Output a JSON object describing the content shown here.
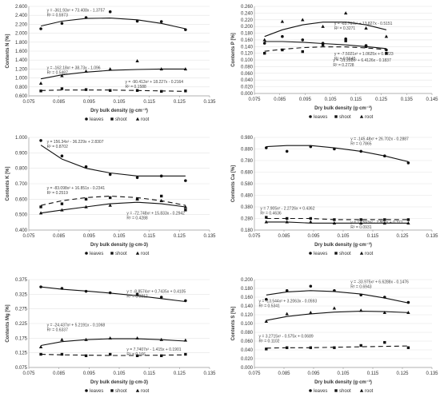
{
  "series_meta": [
    {
      "key": "leaves",
      "name": "leaves",
      "marker": "circle",
      "dash": ""
    },
    {
      "key": "shoot",
      "name": "shoot",
      "marker": "square",
      "dash": "6,4"
    },
    {
      "key": "root",
      "name": "root",
      "marker": "triangle",
      "dash": ""
    }
  ],
  "chart_data": [
    {
      "type": "scatter",
      "ylabel": "Contents N [%]",
      "xlabel": "Dry bulk density (g·cm⁻³)",
      "xlim": [
        0.075,
        0.135
      ],
      "ylim": [
        0.6,
        2.6
      ],
      "xticks": [
        "0.075",
        "0.085",
        "0.095",
        "0.105",
        "0.115",
        "0.125",
        "0.135"
      ],
      "yticks": [
        "0.600",
        "0.800",
        "1.000",
        "1.200",
        "1.400",
        "1.600",
        "1.800",
        "2.000",
        "2.200",
        "2.400",
        "2.600"
      ],
      "x": [
        0.079,
        0.086,
        0.094,
        0.102,
        0.111,
        0.119,
        0.127
      ],
      "series": [
        {
          "key": "leaves",
          "values": [
            2.1,
            2.22,
            2.35,
            2.48,
            2.27,
            2.26,
            2.08
          ],
          "trend": [
            2.16,
            2.27,
            2.33,
            2.34,
            2.3,
            2.22,
            2.1
          ],
          "equation": "y = -361.93x² + 73.408x - 1.3757",
          "r2": "R² = 0.5973"
        },
        {
          "key": "shoot",
          "values": [
            0.71,
            0.76,
            0.74,
            0.72,
            0.72,
            0.7,
            0.71
          ],
          "trend": [
            0.72,
            0.73,
            0.73,
            0.73,
            0.72,
            0.71,
            0.7
          ],
          "equation": "y = -90.413x² + 18.227x - 0.2164",
          "r2": "R² = 0.1588"
        },
        {
          "key": "root",
          "values": [
            0.88,
            1.05,
            1.15,
            1.2,
            1.38,
            1.2,
            1.2
          ],
          "trend": [
            0.98,
            1.07,
            1.13,
            1.17,
            1.19,
            1.2,
            1.2
          ],
          "equation": "y = -162.18x² + 38.73x - 1.096",
          "r2": "R² = 0.5487"
        }
      ],
      "eq_pos": [
        [
          0.081,
          2.48
        ],
        [
          0.107,
          0.89
        ],
        [
          0.081,
          1.2
        ]
      ]
    },
    {
      "type": "scatter",
      "ylabel": "Contents P [%]",
      "xlabel": "Dry bulk density (g·cm⁻³)",
      "xlim": [
        0.075,
        0.145
      ],
      "ylim": [
        0.0,
        0.26
      ],
      "xticks": [
        "0.075",
        "0.085",
        "0.095",
        "0.105",
        "0.115",
        "0.125",
        "0.135",
        "0.145"
      ],
      "yticks": [
        "0.000",
        "0.020",
        "0.040",
        "0.060",
        "0.080",
        "0.100",
        "0.120",
        "0.140",
        "0.160",
        "0.180",
        "0.200",
        "0.220",
        "0.240",
        "0.260"
      ],
      "x": [
        0.079,
        0.086,
        0.094,
        0.102,
        0.111,
        0.119,
        0.127
      ],
      "series": [
        {
          "key": "leaves",
          "values": [
            0.15,
            0.17,
            0.16,
            0.15,
            0.163,
            0.143,
            0.13
          ],
          "trend": [
            0.155,
            0.155,
            0.153,
            0.149,
            0.145,
            0.14,
            0.134
          ],
          "equation": "y = -7.5021x² + 1.0625x + 0.1223",
          "r2": "R² = 0.5648"
        },
        {
          "key": "shoot",
          "values": [
            0.12,
            0.13,
            0.125,
            0.145,
            0.157,
            0.14,
            0.12
          ],
          "trend": [
            0.126,
            0.132,
            0.137,
            0.139,
            0.139,
            0.136,
            0.131
          ],
          "equation": "y = -31.288x² + 6.4126x - 0.1837",
          "r2": "R² = 0.2728"
        },
        {
          "key": "root",
          "values": [
            0.16,
            0.215,
            0.22,
            0.2,
            0.24,
            0.195,
            0.17
          ],
          "trend": [
            0.17,
            0.19,
            0.205,
            0.213,
            0.213,
            0.205,
            0.19
          ],
          "equation": "y = -65.767x² + 13.827x - 0.5151",
          "r2": "R² = 0.3271"
        }
      ],
      "eq_pos": [
        [
          0.1065,
          0.114
        ],
        [
          0.106,
          0.095
        ],
        [
          0.1065,
          0.205
        ]
      ]
    },
    {
      "type": "scatter",
      "ylabel": "Contents K [%]",
      "xlabel": "Dry bulk density (g·cm-3)",
      "xlim": [
        0.075,
        0.135
      ],
      "ylim": [
        0.4,
        1.0
      ],
      "xticks": [
        "0.075",
        "0.085",
        "0.095",
        "0.105",
        "0.115",
        "0.125",
        "0.135"
      ],
      "yticks": [
        "0.400",
        "0.500",
        "0.600",
        "0.700",
        "0.800",
        "0.900",
        "1.000"
      ],
      "x": [
        0.079,
        0.086,
        0.094,
        0.102,
        0.111,
        0.119,
        0.127
      ],
      "series": [
        {
          "key": "leaves",
          "values": [
            0.98,
            0.88,
            0.81,
            0.76,
            0.74,
            0.75,
            0.72
          ],
          "trend": [
            0.95,
            0.86,
            0.8,
            0.77,
            0.75,
            0.75,
            0.75
          ],
          "equation": "y = 156.34x² - 36.229x + 2.8307",
          "r2": "R² = 0.8702"
        },
        {
          "key": "shoot",
          "values": [
            0.55,
            0.57,
            0.6,
            0.61,
            0.6,
            0.62,
            0.53
          ],
          "trend": [
            0.56,
            0.59,
            0.61,
            0.62,
            0.61,
            0.59,
            0.56
          ],
          "equation": "y = -83.098x² + 16.851x - 0.2341",
          "r2": "R² = 0.2519"
        },
        {
          "key": "root",
          "values": [
            0.51,
            0.53,
            0.55,
            0.56,
            0.6,
            0.59,
            0.55
          ],
          "trend": [
            0.51,
            0.53,
            0.55,
            0.57,
            0.58,
            0.57,
            0.55
          ],
          "equation": "y = -72.748x² + 15.833x - 0.2942",
          "r2": "R² = 0.4288"
        }
      ],
      "eq_pos": [
        [
          0.081,
          0.965
        ],
        [
          0.081,
          0.665
        ],
        [
          0.1075,
          0.5
        ]
      ]
    },
    {
      "type": "scatter",
      "ylabel": "Contents Ca [%]",
      "xlabel": "Dry bulk density (g·cm⁻³)",
      "xlim": [
        0.075,
        0.135
      ],
      "ylim": [
        0.18,
        0.98
      ],
      "xticks": [
        "0.075",
        "0.085",
        "0.095",
        "0.105",
        "0.115",
        "0.125",
        "0.135"
      ],
      "yticks": [
        "0.180",
        "0.280",
        "0.380",
        "0.480",
        "0.580",
        "0.680",
        "0.780",
        "0.880",
        "0.980"
      ],
      "x": [
        0.079,
        0.086,
        0.094,
        0.102,
        0.111,
        0.119,
        0.127
      ],
      "series": [
        {
          "key": "leaves",
          "values": [
            0.89,
            0.86,
            0.9,
            0.88,
            0.86,
            0.82,
            0.76
          ],
          "trend": [
            0.9,
            0.91,
            0.91,
            0.89,
            0.86,
            0.82,
            0.77
          ],
          "equation": "y = -145.48x² + 26.702x - 0.2887",
          "r2": "R² = 0.7865"
        },
        {
          "key": "shoot",
          "values": [
            0.29,
            0.28,
            0.28,
            0.27,
            0.27,
            0.27,
            0.27
          ],
          "trend": [
            0.28,
            0.28,
            0.28,
            0.27,
            0.27,
            0.27,
            0.27
          ],
          "equation": "y = 7.905x² - 2.2726x + 0.4362",
          "r2": "R² = 0.4636"
        },
        {
          "key": "root",
          "values": [
            0.25,
            0.25,
            0.25,
            0.24,
            0.24,
            0.24,
            0.24
          ],
          "trend": [
            0.25,
            0.25,
            0.24,
            0.24,
            0.24,
            0.24,
            0.24
          ],
          "equation": "y = 13.593x² - 2.865x + 0.371",
          "r2": "R² = 0.0931"
        }
      ],
      "eq_pos": [
        [
          0.1075,
          0.955
        ],
        [
          0.077,
          0.355
        ],
        [
          0.1075,
          0.235
        ]
      ]
    },
    {
      "type": "scatter",
      "ylabel": "Contents Mg [%]",
      "xlabel": "Dry bulk density (g·cm-3)",
      "xlim": [
        0.075,
        0.135
      ],
      "ylim": [
        0.075,
        0.375
      ],
      "xticks": [
        "0.075",
        "0.085",
        "0.095",
        "0.105",
        "0.115",
        "0.125",
        "0.135"
      ],
      "yticks": [
        "0.075",
        "0.125",
        "0.175",
        "0.225",
        "0.275",
        "0.325",
        "0.375"
      ],
      "x": [
        0.079,
        0.086,
        0.094,
        0.102,
        0.111,
        0.119,
        0.127
      ],
      "series": [
        {
          "key": "leaves",
          "values": [
            0.35,
            0.345,
            0.335,
            0.33,
            0.325,
            0.315,
            0.303
          ],
          "trend": [
            0.35,
            0.342,
            0.336,
            0.329,
            0.32,
            0.31,
            0.3
          ],
          "equation": "y = -8.8574x² + 0.7435x + 0.4105",
          "r2": "R² = 0.8812"
        },
        {
          "key": "shoot",
          "values": [
            0.12,
            0.12,
            0.115,
            0.12,
            0.115,
            0.115,
            0.12
          ],
          "trend": [
            0.12,
            0.118,
            0.117,
            0.116,
            0.116,
            0.117,
            0.118
          ],
          "equation": "y = 7.7407x² - 1.415x + 0.1901",
          "r2": "R² = 0.166"
        },
        {
          "key": "root",
          "values": [
            0.145,
            0.17,
            0.17,
            0.175,
            0.175,
            0.17,
            0.168
          ],
          "trend": [
            0.15,
            0.163,
            0.17,
            0.173,
            0.173,
            0.17,
            0.165
          ],
          "equation": "y = -24.437x² + 5.2191x - 0.1068",
          "r2": "R² = 0.6337"
        }
      ],
      "eq_pos": [
        [
          0.1075,
          0.33
        ],
        [
          0.1075,
          0.132
        ],
        [
          0.081,
          0.215
        ]
      ]
    },
    {
      "type": "scatter",
      "ylabel": "Contents S [%]",
      "xlabel": "Dry bulk density (g·cm⁻³)",
      "xlim": [
        0.075,
        0.135
      ],
      "ylim": [
        0.0,
        0.2
      ],
      "xticks": [
        "0.075",
        "0.085",
        "0.095",
        "0.105",
        "0.115",
        "0.125",
        "0.135"
      ],
      "yticks": [
        "0.000",
        "0.020",
        "0.040",
        "0.060",
        "0.080",
        "0.100",
        "0.120",
        "0.140",
        "0.160",
        "0.180",
        "0.200"
      ],
      "x": [
        0.079,
        0.086,
        0.094,
        0.102,
        0.111,
        0.119,
        0.127
      ],
      "series": [
        {
          "key": "leaves",
          "values": [
            0.155,
            0.175,
            0.185,
            0.175,
            0.165,
            0.16,
            0.148
          ],
          "trend": [
            0.165,
            0.172,
            0.175,
            0.173,
            0.167,
            0.158,
            0.147
          ],
          "equation": "y = -33.975x² + 6.6288x - 0.1476",
          "r2": "R² = 0.6943"
        },
        {
          "key": "shoot",
          "values": [
            0.042,
            0.045,
            0.045,
            0.045,
            0.05,
            0.057,
            0.045
          ],
          "trend": [
            0.044,
            0.045,
            0.045,
            0.046,
            0.047,
            0.048,
            0.049
          ],
          "equation": "y = 3.2715x² - 0.575x + 0.0689",
          "r2": "R² = 0.1102"
        },
        {
          "key": "root",
          "values": [
            0.105,
            0.122,
            0.125,
            0.135,
            0.13,
            0.125,
            0.125
          ],
          "trend": [
            0.107,
            0.116,
            0.122,
            0.126,
            0.128,
            0.127,
            0.125
          ],
          "equation": "y = -13.544x² + 3.2063x - 0.0593",
          "r2": "R² = 0.5341"
        }
      ],
      "eq_pos": [
        [
          0.1075,
          0.192
        ],
        [
          0.0765,
          0.068
        ],
        [
          0.0765,
          0.148
        ]
      ]
    }
  ]
}
